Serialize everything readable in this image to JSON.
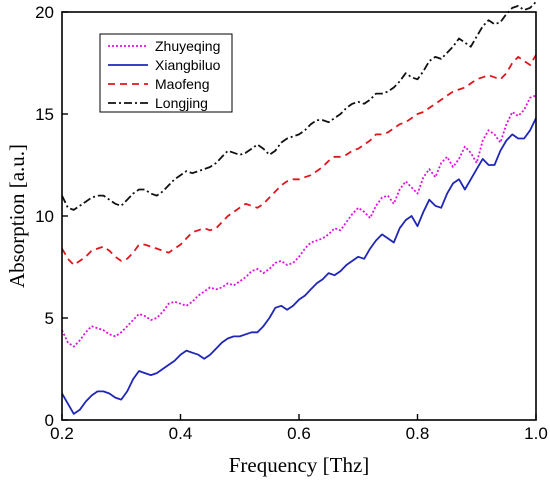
{
  "chart_data": {
    "type": "line",
    "xlabel": "Frequency [Thz]",
    "ylabel": "Absorption [a.u.]",
    "xlim": [
      0.2,
      1.0
    ],
    "ylim": [
      0,
      20
    ],
    "xticks": [
      0.2,
      0.4,
      0.6,
      0.8,
      1.0
    ],
    "xtick_labels": [
      "0.2",
      "0.4",
      "0.6",
      "0.8",
      "1.0"
    ],
    "yticks": [
      0,
      5,
      10,
      15,
      20
    ],
    "ytick_labels": [
      "0",
      "5",
      "10",
      "15",
      "20"
    ],
    "grid": false,
    "legend_position": "top-left",
    "x": [
      0.2,
      0.21,
      0.22,
      0.23,
      0.24,
      0.25,
      0.26,
      0.27,
      0.28,
      0.29,
      0.3,
      0.31,
      0.32,
      0.33,
      0.34,
      0.35,
      0.36,
      0.37,
      0.38,
      0.39,
      0.4,
      0.41,
      0.42,
      0.43,
      0.44,
      0.45,
      0.46,
      0.47,
      0.48,
      0.49,
      0.5,
      0.51,
      0.52,
      0.53,
      0.54,
      0.55,
      0.56,
      0.57,
      0.58,
      0.59,
      0.6,
      0.61,
      0.62,
      0.63,
      0.64,
      0.65,
      0.66,
      0.67,
      0.68,
      0.69,
      0.7,
      0.71,
      0.72,
      0.73,
      0.74,
      0.75,
      0.76,
      0.77,
      0.78,
      0.79,
      0.8,
      0.81,
      0.82,
      0.83,
      0.84,
      0.85,
      0.86,
      0.87,
      0.88,
      0.89,
      0.9,
      0.91,
      0.92,
      0.93,
      0.94,
      0.95,
      0.96,
      0.97,
      0.98,
      0.99,
      1.0
    ],
    "series": [
      {
        "name": "Zhuyeqing",
        "color": "#e010e0",
        "dash": "2,2",
        "values": [
          4.4,
          3.8,
          3.6,
          3.9,
          4.3,
          4.6,
          4.5,
          4.4,
          4.2,
          4.1,
          4.3,
          4.6,
          4.9,
          5.2,
          5.1,
          4.9,
          5.0,
          5.3,
          5.7,
          5.8,
          5.7,
          5.6,
          5.8,
          6.1,
          6.3,
          6.5,
          6.4,
          6.5,
          6.7,
          6.6,
          6.8,
          7.0,
          7.3,
          7.4,
          7.2,
          7.4,
          7.7,
          7.8,
          7.6,
          7.7,
          8.0,
          8.4,
          8.7,
          8.8,
          8.9,
          9.1,
          9.4,
          9.3,
          9.7,
          10.1,
          10.4,
          10.2,
          9.9,
          10.5,
          10.9,
          11.0,
          10.6,
          11.3,
          11.7,
          11.4,
          11.1,
          11.9,
          12.3,
          11.9,
          12.6,
          12.9,
          12.4,
          12.8,
          13.4,
          13.1,
          12.6,
          13.7,
          14.2,
          14.0,
          13.6,
          14.5,
          15.1,
          14.9,
          15.2,
          15.8,
          15.9
        ]
      },
      {
        "name": "Xiangbiluo",
        "color": "#1f26b8",
        "dash": "",
        "values": [
          1.3,
          0.8,
          0.3,
          0.5,
          0.9,
          1.2,
          1.4,
          1.4,
          1.3,
          1.1,
          1.0,
          1.4,
          2.0,
          2.4,
          2.3,
          2.2,
          2.3,
          2.5,
          2.7,
          2.9,
          3.2,
          3.4,
          3.3,
          3.2,
          3.0,
          3.2,
          3.5,
          3.8,
          4.0,
          4.1,
          4.1,
          4.2,
          4.3,
          4.3,
          4.6,
          5.0,
          5.5,
          5.6,
          5.4,
          5.6,
          5.9,
          6.1,
          6.4,
          6.7,
          6.9,
          7.2,
          7.1,
          7.3,
          7.6,
          7.8,
          8.0,
          7.9,
          8.4,
          8.8,
          9.1,
          8.9,
          8.7,
          9.4,
          9.8,
          10.0,
          9.5,
          10.2,
          10.8,
          10.5,
          10.4,
          11.1,
          11.6,
          11.8,
          11.3,
          11.8,
          12.3,
          12.8,
          12.5,
          12.5,
          13.2,
          13.7,
          14.0,
          13.8,
          13.8,
          14.2,
          14.8
        ]
      },
      {
        "name": "Maofeng",
        "color": "#e0161d",
        "dash": "7,5",
        "values": [
          8.4,
          7.9,
          7.6,
          7.8,
          8.0,
          8.3,
          8.4,
          8.5,
          8.3,
          8.0,
          7.8,
          7.9,
          8.2,
          8.6,
          8.6,
          8.5,
          8.4,
          8.3,
          8.2,
          8.4,
          8.6,
          8.9,
          9.2,
          9.3,
          9.4,
          9.3,
          9.4,
          9.7,
          10.0,
          10.2,
          10.4,
          10.6,
          10.5,
          10.4,
          10.6,
          10.9,
          11.2,
          11.5,
          11.7,
          11.8,
          11.8,
          11.9,
          12.0,
          12.2,
          12.4,
          12.7,
          12.9,
          12.9,
          13.0,
          13.2,
          13.3,
          13.5,
          13.7,
          14.0,
          14.0,
          14.1,
          14.3,
          14.5,
          14.6,
          14.8,
          15.0,
          15.1,
          15.3,
          15.5,
          15.7,
          15.9,
          16.1,
          16.2,
          16.3,
          16.5,
          16.7,
          16.8,
          16.9,
          16.8,
          16.7,
          17.0,
          17.5,
          17.8,
          17.6,
          17.4,
          17.9
        ]
      },
      {
        "name": "Longjing",
        "color": "#111111",
        "dash": "8,3,2,3",
        "values": [
          11.0,
          10.4,
          10.3,
          10.5,
          10.7,
          10.9,
          11.0,
          11.0,
          10.8,
          10.6,
          10.5,
          10.8,
          11.1,
          11.3,
          11.3,
          11.1,
          11.0,
          11.2,
          11.5,
          11.8,
          12.0,
          12.2,
          12.1,
          12.2,
          12.3,
          12.4,
          12.6,
          12.9,
          13.2,
          13.1,
          13.0,
          13.1,
          13.3,
          13.5,
          13.3,
          13.0,
          13.2,
          13.6,
          13.8,
          13.9,
          14.0,
          14.2,
          14.5,
          14.7,
          14.7,
          14.6,
          14.8,
          15.0,
          15.3,
          15.5,
          15.6,
          15.5,
          15.7,
          16.0,
          16.0,
          16.1,
          16.3,
          16.6,
          17.0,
          16.8,
          16.7,
          17.1,
          17.6,
          17.8,
          17.7,
          18.0,
          18.3,
          18.7,
          18.5,
          18.3,
          18.8,
          19.3,
          19.6,
          19.4,
          19.5,
          19.9,
          20.2,
          20.3,
          20.1,
          20.2,
          20.5
        ]
      }
    ]
  }
}
